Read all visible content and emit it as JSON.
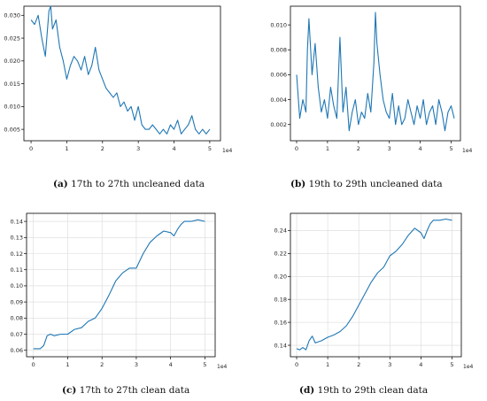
{
  "chart_data": [
    {
      "type": "line",
      "caption_label": "(a)",
      "caption_text": "17th to 27th uncleaned data",
      "offset_text": "1e4",
      "x_ticks": [
        "0",
        "1",
        "2",
        "3",
        "4",
        "5"
      ],
      "y_ticks": [
        "0.005",
        "0.010",
        "0.015",
        "0.020",
        "0.025",
        "0.030"
      ],
      "xlim": [
        -0.2,
        5.3
      ],
      "ylim": [
        0.0025,
        0.032
      ],
      "grid": false,
      "series": [
        {
          "color": "#1f77b4",
          "x": [
            0,
            0.1,
            0.2,
            0.3,
            0.4,
            0.5,
            0.55,
            0.6,
            0.7,
            0.8,
            0.9,
            1.0,
            1.1,
            1.2,
            1.3,
            1.4,
            1.5,
            1.6,
            1.7,
            1.8,
            1.9,
            2.0,
            2.1,
            2.2,
            2.3,
            2.4,
            2.5,
            2.6,
            2.7,
            2.8,
            2.9,
            3.0,
            3.1,
            3.2,
            3.3,
            3.4,
            3.5,
            3.6,
            3.7,
            3.8,
            3.9,
            4.0,
            4.1,
            4.2,
            4.3,
            4.4,
            4.5,
            4.6,
            4.7,
            4.8,
            4.9,
            5.0
          ],
          "y": [
            0.029,
            0.028,
            0.03,
            0.025,
            0.021,
            0.031,
            0.032,
            0.027,
            0.029,
            0.023,
            0.02,
            0.016,
            0.019,
            0.021,
            0.02,
            0.018,
            0.021,
            0.017,
            0.019,
            0.023,
            0.018,
            0.016,
            0.014,
            0.013,
            0.012,
            0.013,
            0.01,
            0.011,
            0.009,
            0.01,
            0.007,
            0.01,
            0.006,
            0.005,
            0.005,
            0.006,
            0.005,
            0.004,
            0.005,
            0.004,
            0.006,
            0.005,
            0.007,
            0.004,
            0.005,
            0.006,
            0.008,
            0.005,
            0.004,
            0.005,
            0.004,
            0.005
          ]
        }
      ]
    },
    {
      "type": "line",
      "caption_label": "(b)",
      "caption_text": "19th to 29th uncleaned data",
      "offset_text": "1e4",
      "x_ticks": [
        "0",
        "1",
        "2",
        "3",
        "4",
        "5"
      ],
      "y_ticks": [
        "0.002",
        "0.004",
        "0.006",
        "0.008",
        "0.010"
      ],
      "xlim": [
        -0.2,
        5.3
      ],
      "ylim": [
        0.0007,
        0.0115
      ],
      "grid": false,
      "series": [
        {
          "color": "#1f77b4",
          "x": [
            0,
            0.1,
            0.2,
            0.3,
            0.35,
            0.4,
            0.5,
            0.6,
            0.7,
            0.8,
            0.9,
            1.0,
            1.1,
            1.2,
            1.3,
            1.4,
            1.5,
            1.6,
            1.7,
            1.8,
            1.9,
            2.0,
            2.1,
            2.2,
            2.3,
            2.4,
            2.5,
            2.55,
            2.6,
            2.7,
            2.8,
            2.9,
            3.0,
            3.1,
            3.2,
            3.3,
            3.4,
            3.5,
            3.6,
            3.7,
            3.8,
            3.9,
            4.0,
            4.1,
            4.2,
            4.3,
            4.4,
            4.5,
            4.6,
            4.7,
            4.8,
            4.9,
            5.0,
            5.1
          ],
          "y": [
            0.006,
            0.0025,
            0.004,
            0.003,
            0.008,
            0.0105,
            0.006,
            0.0085,
            0.005,
            0.003,
            0.004,
            0.0025,
            0.005,
            0.0035,
            0.0025,
            0.009,
            0.003,
            0.005,
            0.0015,
            0.003,
            0.004,
            0.002,
            0.003,
            0.0025,
            0.0045,
            0.003,
            0.007,
            0.011,
            0.0085,
            0.006,
            0.004,
            0.003,
            0.0025,
            0.0045,
            0.002,
            0.0035,
            0.002,
            0.0025,
            0.004,
            0.003,
            0.002,
            0.0035,
            0.0025,
            0.004,
            0.002,
            0.003,
            0.0035,
            0.002,
            0.004,
            0.003,
            0.0015,
            0.003,
            0.0035,
            0.0025
          ]
        }
      ]
    },
    {
      "type": "line",
      "caption_label": "(c)",
      "caption_text": "17th to 27th clean data",
      "offset_text": "1e4",
      "x_ticks": [
        "0",
        "1",
        "2",
        "3",
        "4",
        "5"
      ],
      "y_ticks": [
        "0.06",
        "0.07",
        "0.08",
        "0.09",
        "0.10",
        "0.11",
        "0.12",
        "0.13",
        "0.14"
      ],
      "xlim": [
        -0.2,
        5.3
      ],
      "ylim": [
        0.056,
        0.145
      ],
      "grid": true,
      "series": [
        {
          "color": "#1f77b4",
          "x": [
            0,
            0.2,
            0.3,
            0.4,
            0.5,
            0.6,
            0.8,
            1.0,
            1.2,
            1.4,
            1.6,
            1.8,
            2.0,
            2.2,
            2.4,
            2.6,
            2.8,
            3.0,
            3.2,
            3.4,
            3.6,
            3.8,
            4.0,
            4.1,
            4.2,
            4.3,
            4.4,
            4.6,
            4.8,
            5.0
          ],
          "y": [
            0.061,
            0.061,
            0.063,
            0.069,
            0.07,
            0.069,
            0.07,
            0.07,
            0.073,
            0.074,
            0.078,
            0.08,
            0.086,
            0.094,
            0.103,
            0.108,
            0.111,
            0.111,
            0.12,
            0.127,
            0.131,
            0.134,
            0.133,
            0.131,
            0.135,
            0.138,
            0.14,
            0.14,
            0.141,
            0.14
          ]
        }
      ]
    },
    {
      "type": "line",
      "caption_label": "(d)",
      "caption_text": "19th to 29th clean data",
      "offset_text": "1e4",
      "x_ticks": [
        "0",
        "1",
        "2",
        "3",
        "4",
        "5"
      ],
      "y_ticks": [
        "0.14",
        "0.16",
        "0.18",
        "0.20",
        "0.22",
        "0.24"
      ],
      "xlim": [
        -0.2,
        5.3
      ],
      "ylim": [
        0.13,
        0.255
      ],
      "grid": true,
      "series": [
        {
          "color": "#1f77b4",
          "x": [
            0,
            0.1,
            0.2,
            0.3,
            0.4,
            0.5,
            0.6,
            0.8,
            1.0,
            1.2,
            1.4,
            1.6,
            1.8,
            2.0,
            2.2,
            2.4,
            2.6,
            2.8,
            3.0,
            3.2,
            3.4,
            3.6,
            3.8,
            4.0,
            4.1,
            4.2,
            4.3,
            4.4,
            4.6,
            4.8,
            5.0
          ],
          "y": [
            0.137,
            0.136,
            0.138,
            0.136,
            0.144,
            0.148,
            0.142,
            0.144,
            0.147,
            0.149,
            0.152,
            0.157,
            0.165,
            0.175,
            0.185,
            0.195,
            0.203,
            0.208,
            0.218,
            0.222,
            0.228,
            0.236,
            0.242,
            0.238,
            0.233,
            0.24,
            0.246,
            0.249,
            0.249,
            0.25,
            0.249
          ]
        }
      ]
    }
  ]
}
